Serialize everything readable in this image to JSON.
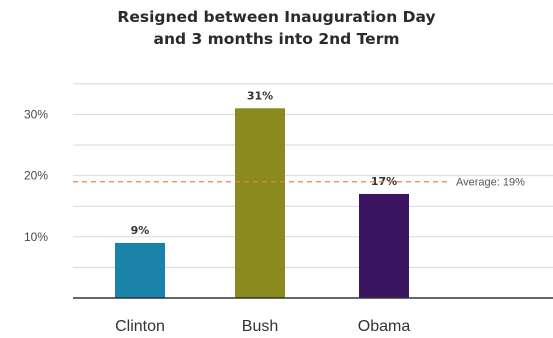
{
  "chart_data": {
    "type": "bar",
    "title_lines": [
      "Resigned between Inauguration Day",
      "and 3 months into 2nd Term"
    ],
    "categories": [
      "Clinton",
      "Bush",
      "Obama"
    ],
    "values": [
      9,
      31,
      17
    ],
    "data_labels": [
      "9%",
      "31%",
      "17%"
    ],
    "colors": [
      "#1b83aa",
      "#8a8b1e",
      "#3b1560"
    ],
    "ylim": [
      0,
      35
    ],
    "yticks": [
      10,
      20,
      30
    ],
    "ytick_labels": [
      "10%",
      "20%",
      "30%"
    ],
    "grid": true,
    "reference_line": {
      "value": 19,
      "label": "Average: 19%",
      "color": "#e0844a",
      "style": "dashed"
    },
    "xlabel": "",
    "ylabel": ""
  }
}
